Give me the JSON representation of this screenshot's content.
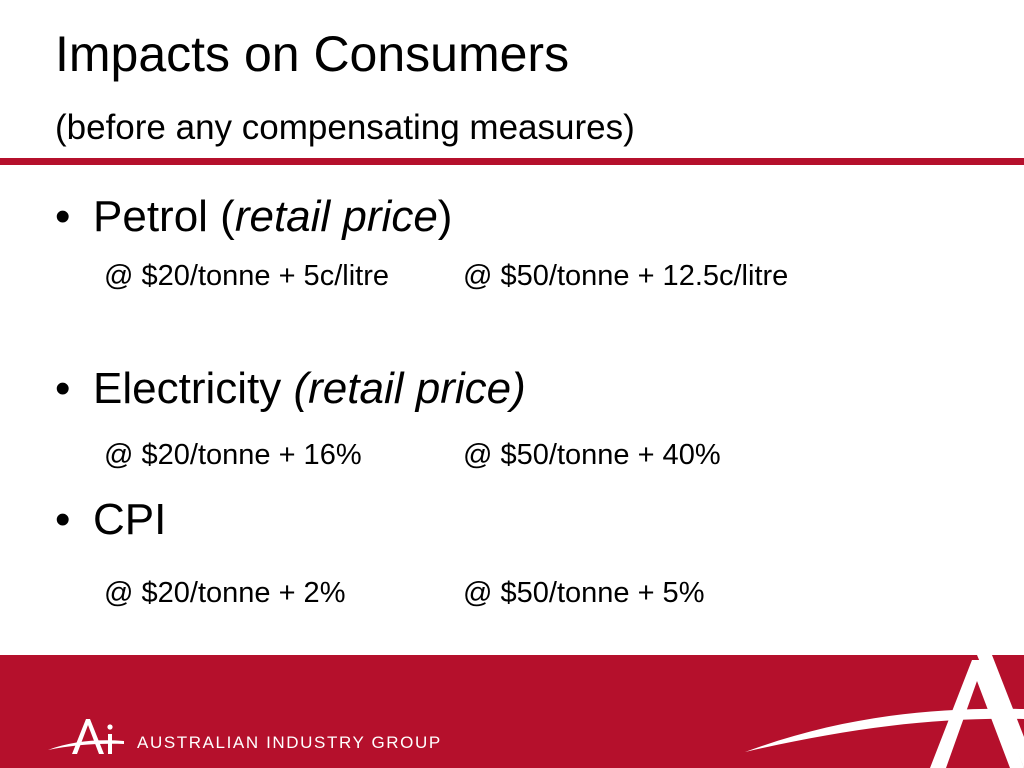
{
  "slide": {
    "title": "Impacts on Consumers",
    "subtitle": "(before any compensating measures)"
  },
  "items": [
    {
      "label": "Petrol (",
      "emphasis": "retail price",
      "label_end": ")",
      "low": "@ $20/tonne + 5c/litre",
      "high": "@ $50/tonne + 12.5c/litre"
    },
    {
      "label": "Electricity ",
      "emphasis": "(retail price)",
      "label_end": "",
      "low": "@ $20/tonne + 16%",
      "high": "@ $50/tonne + 40%"
    },
    {
      "label": "CPI",
      "emphasis": "",
      "label_end": "",
      "low": "@ $20/tonne + 2%",
      "high": "@ $50/tonne + 5%"
    }
  ],
  "footer": {
    "brand_name": "AUSTRALIAN INDUSTRY GROUP",
    "logo_mark": "Ai"
  },
  "colors": {
    "accent": "#b5102c",
    "text": "#000000",
    "footer_text": "#ffffff"
  },
  "icons": {
    "logo": "ai-logo-icon",
    "watermark": "large-a-watermark-icon"
  }
}
